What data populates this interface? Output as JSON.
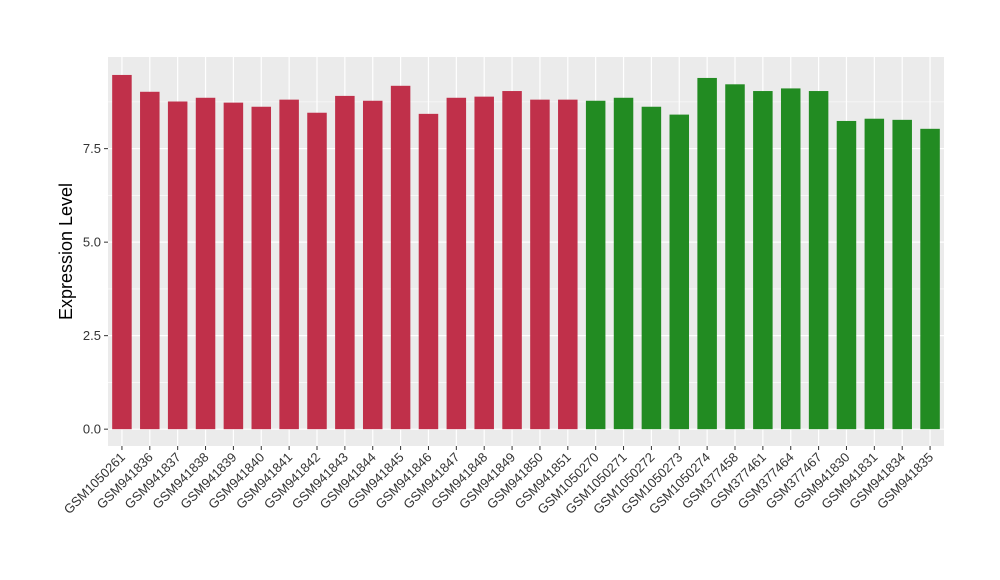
{
  "chart_data": {
    "type": "bar",
    "title": "",
    "xlabel": "",
    "ylabel": "Expression Level",
    "ylim": [
      -0.45,
      9.95
    ],
    "yticks": [
      0.0,
      2.5,
      5.0,
      7.5
    ],
    "ytick_labels": [
      "0.0",
      "2.5",
      "5.0",
      "7.5"
    ],
    "grid": true,
    "legend": "none",
    "categories": [
      "GSM1050261",
      "GSM941836",
      "GSM941837",
      "GSM941838",
      "GSM941839",
      "GSM941840",
      "GSM941841",
      "GSM941842",
      "GSM941843",
      "GSM941844",
      "GSM941845",
      "GSM941846",
      "GSM941847",
      "GSM941848",
      "GSM941849",
      "GSM941850",
      "GSM941851",
      "GSM1050270",
      "GSM1050271",
      "GSM1050272",
      "GSM1050273",
      "GSM1050274",
      "GSM377458",
      "GSM377461",
      "GSM377464",
      "GSM377467",
      "GSM941830",
      "GSM941831",
      "GSM941834",
      "GSM941835"
    ],
    "values": [
      9.47,
      9.02,
      8.76,
      8.86,
      8.73,
      8.62,
      8.81,
      8.46,
      8.91,
      8.78,
      9.18,
      8.43,
      8.86,
      8.89,
      9.04,
      8.81,
      8.81,
      8.78,
      8.86,
      8.62,
      8.41,
      9.39,
      9.22,
      9.04,
      9.11,
      9.04,
      8.24,
      8.3,
      8.27,
      8.03
    ],
    "colors": [
      "#C0304A",
      "#C0304A",
      "#C0304A",
      "#C0304A",
      "#C0304A",
      "#C0304A",
      "#C0304A",
      "#C0304A",
      "#C0304A",
      "#C0304A",
      "#C0304A",
      "#C0304A",
      "#C0304A",
      "#C0304A",
      "#C0304A",
      "#C0304A",
      "#C0304A",
      "#228B22",
      "#228B22",
      "#228B22",
      "#228B22",
      "#228B22",
      "#228B22",
      "#228B22",
      "#228B22",
      "#228B22",
      "#228B22",
      "#228B22",
      "#228B22",
      "#228B22"
    ],
    "panel_color": "#EBEBEB",
    "grid_color": "#FFFFFF"
  }
}
